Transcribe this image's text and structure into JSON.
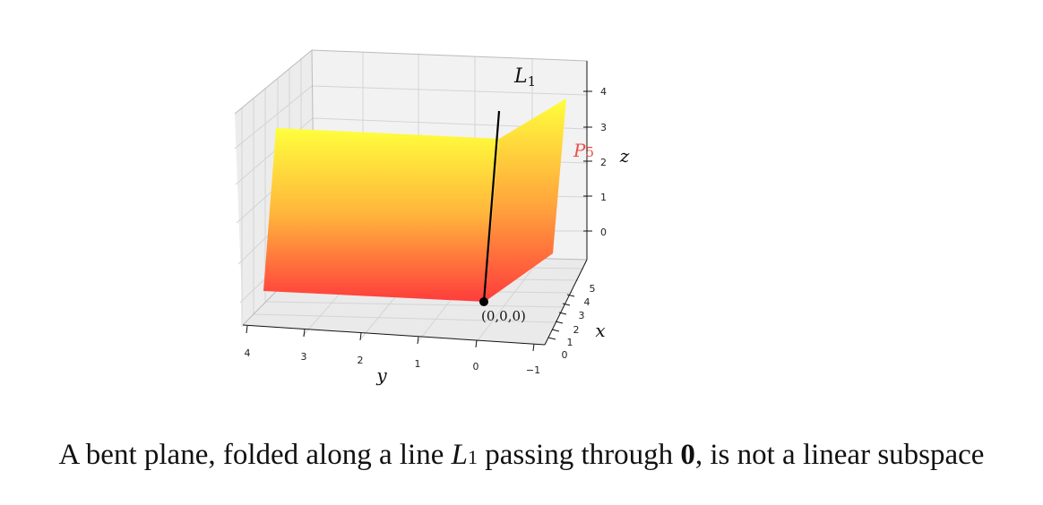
{
  "figure": {
    "y_axis_label": "y",
    "x_axis_label": "x",
    "z_axis_label": "z",
    "line_label_main": "L",
    "line_label_sub": "1",
    "plane_label_main": "P",
    "plane_label_sub": "5",
    "origin_label": "(0,0,0)",
    "y_ticks": [
      "4",
      "3",
      "2",
      "1",
      "0",
      "−1"
    ],
    "x_ticks": [
      "0",
      "1",
      "2",
      "3",
      "4",
      "5"
    ],
    "z_ticks": [
      "4",
      "3",
      "2",
      "1",
      "0"
    ],
    "colors": {
      "plane_top": "#ffff3c",
      "plane_bottom": "#ff3c3c",
      "line": "#000000",
      "plane_label": "#e8504a",
      "pane": "#f0f0f0",
      "grid": "#d4d4d4"
    }
  },
  "caption": {
    "prefix": "A bent plane, folded along a line ",
    "line_main": "L",
    "line_sub": "1",
    "middle": " passing through ",
    "zero": "0",
    "suffix": ", is not a linear subspace"
  }
}
